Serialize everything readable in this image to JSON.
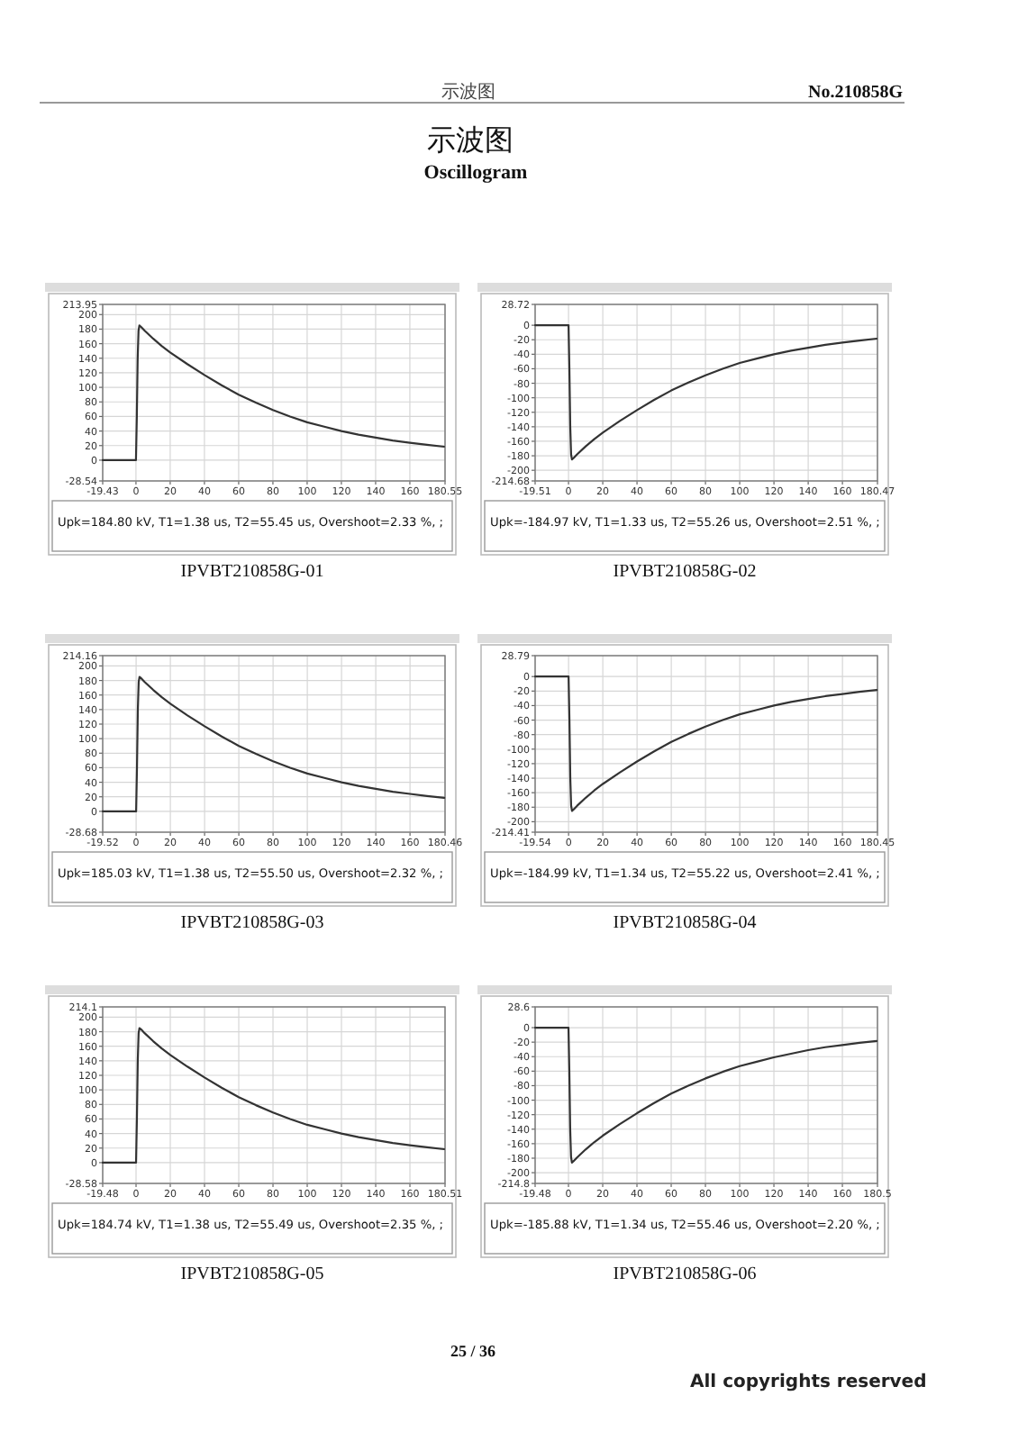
{
  "chart_data": [
    {
      "type": "other",
      "title": "示波图",
      "subtitle": "Oscillogram",
      "annotations": [
        "示波图",
        "No.210858G",
        "25 / 36",
        "All copyrights reserved"
      ]
    },
    {
      "type": "line",
      "xlim": [
        -19.43,
        180.55
      ],
      "ylim": [
        -28.54,
        213.95
      ],
      "xticks": [
        -19.43,
        0,
        20,
        40,
        60,
        80,
        100,
        120,
        140,
        160,
        180.55
      ],
      "yticks": [
        -28.54,
        0,
        20,
        40,
        60,
        80,
        100,
        120,
        140,
        160,
        180,
        200,
        213.95
      ],
      "grid": true,
      "annotations": [
        "Upk=184.80 kV, T1=1.38 us, T2=55.45 us, Overshoot=2.33 %, ;",
        "IPVBT210858G-01"
      ],
      "series": [
        {
          "color": "#333333",
          "x": [
            -19.43,
            0,
            0.5,
            1,
            1.5,
            2,
            3,
            5,
            10,
            15,
            20,
            30,
            40,
            50,
            60,
            70,
            80,
            90,
            100,
            110,
            120,
            130,
            140,
            150,
            160,
            170,
            180
          ],
          "values": [
            0,
            0,
            60,
            140,
            178,
            185,
            183,
            178,
            167,
            157,
            148,
            132,
            117,
            103,
            90,
            79,
            69,
            60,
            52,
            46,
            40,
            35,
            31,
            27,
            24,
            21,
            18.5
          ]
        }
      ]
    },
    {
      "type": "line",
      "xlim": [
        -19.51,
        180.47
      ],
      "ylim": [
        -214.68,
        28.72
      ],
      "xticks": [
        -19.51,
        0,
        20,
        40,
        60,
        80,
        100,
        120,
        140,
        160,
        180.47
      ],
      "yticks": [
        -214.68,
        -200,
        -180,
        -160,
        -140,
        -120,
        -100,
        -80,
        -60,
        -40,
        -20,
        0,
        28.72
      ],
      "grid": true,
      "annotations": [
        "Upk=-184.97 kV, T1=1.33 us, T2=55.26 us, Overshoot=2.51 %, ;",
        "IPVBT210858G-02"
      ],
      "series": [
        {
          "color": "#333333",
          "x": [
            -19.51,
            0,
            0.5,
            1,
            1.5,
            2,
            3,
            5,
            10,
            15,
            20,
            30,
            40,
            50,
            60,
            70,
            80,
            90,
            100,
            110,
            120,
            130,
            140,
            150,
            160,
            170,
            180
          ],
          "values": [
            0,
            0,
            -60,
            -140,
            -178,
            -185,
            -183,
            -178,
            -167,
            -157,
            -148,
            -132,
            -117,
            -103,
            -90,
            -79,
            -69,
            -60,
            -52,
            -46,
            -40,
            -35,
            -31,
            -27,
            -24,
            -21,
            -18.5
          ]
        }
      ]
    },
    {
      "type": "line",
      "xlim": [
        -19.52,
        180.46
      ],
      "ylim": [
        -28.68,
        214.16
      ],
      "xticks": [
        -19.52,
        0,
        20,
        40,
        60,
        80,
        100,
        120,
        140,
        160,
        180.46
      ],
      "yticks": [
        -28.68,
        0,
        20,
        40,
        60,
        80,
        100,
        120,
        140,
        160,
        180,
        200,
        214.16
      ],
      "grid": true,
      "annotations": [
        "Upk=185.03 kV, T1=1.38 us, T2=55.50 us, Overshoot=2.32 %, ;",
        "IPVBT210858G-03"
      ],
      "series": [
        {
          "color": "#333333",
          "x": [
            -19.52,
            0,
            0.5,
            1,
            1.5,
            2,
            3,
            5,
            10,
            15,
            20,
            30,
            40,
            50,
            60,
            70,
            80,
            90,
            100,
            110,
            120,
            130,
            140,
            150,
            160,
            170,
            180
          ],
          "values": [
            0,
            0,
            60,
            140,
            178,
            185,
            183,
            178,
            167,
            157,
            148,
            132,
            117,
            103,
            90,
            79,
            69,
            60,
            52,
            46,
            40,
            35,
            31,
            27,
            24,
            21,
            18.5
          ]
        }
      ]
    },
    {
      "type": "line",
      "xlim": [
        -19.54,
        180.45
      ],
      "ylim": [
        -214.41,
        28.79
      ],
      "xticks": [
        -19.54,
        0,
        20,
        40,
        60,
        80,
        100,
        120,
        140,
        160,
        180.45
      ],
      "yticks": [
        -214.41,
        -200,
        -180,
        -160,
        -140,
        -120,
        -100,
        -80,
        -60,
        -40,
        -20,
        0,
        28.79
      ],
      "grid": true,
      "annotations": [
        "Upk=-184.99 kV, T1=1.34 us, T2=55.22 us, Overshoot=2.41 %, ;",
        "IPVBT210858G-04"
      ],
      "series": [
        {
          "color": "#333333",
          "x": [
            -19.54,
            0,
            0.5,
            1,
            1.5,
            2,
            3,
            5,
            10,
            15,
            20,
            30,
            40,
            50,
            60,
            70,
            80,
            90,
            100,
            110,
            120,
            130,
            140,
            150,
            160,
            170,
            180
          ],
          "values": [
            0,
            0,
            -60,
            -140,
            -178,
            -185,
            -183,
            -178,
            -167,
            -157,
            -148,
            -132,
            -117,
            -103,
            -90,
            -79,
            -69,
            -60,
            -52,
            -46,
            -40,
            -35,
            -31,
            -27,
            -24,
            -21,
            -18.5
          ]
        }
      ]
    },
    {
      "type": "line",
      "xlim": [
        -19.48,
        180.51
      ],
      "ylim": [
        -28.58,
        214.1
      ],
      "xticks": [
        -19.48,
        0,
        20,
        40,
        60,
        80,
        100,
        120,
        140,
        160,
        180.51
      ],
      "yticks": [
        -28.58,
        0,
        20,
        40,
        60,
        80,
        100,
        120,
        140,
        160,
        180,
        200,
        214.1
      ],
      "grid": true,
      "annotations": [
        "Upk=184.74 kV, T1=1.38 us, T2=55.49 us, Overshoot=2.35 %, ;",
        "IPVBT210858G-05"
      ],
      "series": [
        {
          "color": "#333333",
          "x": [
            -19.48,
            0,
            0.5,
            1,
            1.5,
            2,
            3,
            5,
            10,
            15,
            20,
            30,
            40,
            50,
            60,
            70,
            80,
            90,
            100,
            110,
            120,
            130,
            140,
            150,
            160,
            170,
            180
          ],
          "values": [
            0,
            0,
            60,
            140,
            178,
            185,
            183,
            178,
            167,
            157,
            148,
            132,
            117,
            103,
            90,
            79,
            69,
            60,
            52,
            46,
            40,
            35,
            31,
            27,
            24,
            21,
            18.5
          ]
        }
      ]
    },
    {
      "type": "line",
      "xlim": [
        -19.48,
        180.5
      ],
      "ylim": [
        -214.8,
        28.6
      ],
      "xticks": [
        -19.48,
        0,
        20,
        40,
        60,
        80,
        100,
        120,
        140,
        160,
        180.5
      ],
      "yticks": [
        -214.8,
        -200,
        -180,
        -160,
        -140,
        -120,
        -100,
        -80,
        -60,
        -40,
        -20,
        0,
        28.6
      ],
      "grid": true,
      "annotations": [
        "Upk=-185.88 kV, T1=1.34 us, T2=55.46 us, Overshoot=2.20 %, ;",
        "IPVBT210858G-06"
      ],
      "series": [
        {
          "color": "#333333",
          "x": [
            -19.48,
            0,
            0.5,
            1,
            1.5,
            2,
            3,
            5,
            10,
            15,
            20,
            30,
            40,
            50,
            60,
            70,
            80,
            90,
            100,
            110,
            120,
            130,
            140,
            150,
            160,
            170,
            180
          ],
          "values": [
            0,
            0,
            -60,
            -140,
            -178,
            -186,
            -184,
            -179,
            -168,
            -158,
            -149,
            -133,
            -118,
            -104,
            -91,
            -80,
            -70,
            -61,
            -53,
            -47,
            -41,
            -36,
            -31,
            -27,
            -24,
            -21,
            -18.5
          ]
        }
      ]
    }
  ]
}
